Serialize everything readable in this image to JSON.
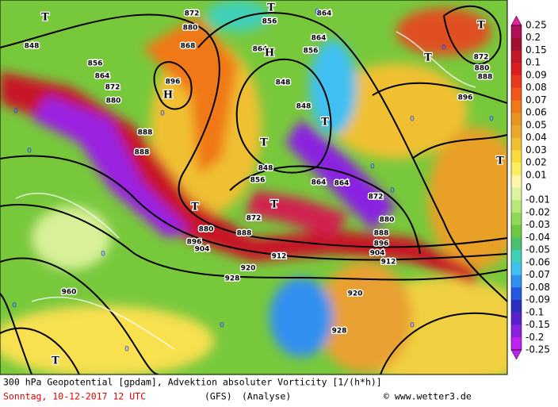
{
  "map": {
    "contour_labels": [
      "872",
      "880",
      "864",
      "872",
      "880",
      "896",
      "888",
      "888",
      "856",
      "868",
      "856",
      "864",
      "864",
      "856",
      "864",
      "848",
      "848",
      "848",
      "856",
      "864",
      "864",
      "872",
      "880",
      "888",
      "896",
      "904",
      "912",
      "912",
      "872",
      "880",
      "888",
      "896",
      "904",
      "920",
      "928",
      "920",
      "928",
      "960",
      "848",
      "872",
      "880",
      "888",
      "896"
    ],
    "center_labels": [
      "H",
      "H",
      "T",
      "T",
      "T",
      "T",
      "T",
      "T",
      "T",
      "T",
      "T",
      "T"
    ],
    "zero_labels": [
      "0",
      "0",
      "0",
      "0",
      "0",
      "0",
      "0",
      "0",
      "0",
      "0",
      "0",
      "0",
      "0",
      "0"
    ],
    "colorbar": {
      "labels": [
        0.25,
        0.2,
        0.15,
        0.1,
        0.09,
        0.08,
        0.07,
        0.06,
        0.05,
        0.04,
        0.03,
        0.02,
        0.01,
        0,
        -0.01,
        -0.02,
        -0.03,
        -0.04,
        -0.05,
        -0.06,
        -0.07,
        -0.08,
        -0.09,
        -0.1,
        -0.15,
        -0.2,
        -0.25
      ],
      "colors": [
        "#b0105a",
        "#a01030",
        "#c01828",
        "#d82020",
        "#e83a1c",
        "#f05818",
        "#f07818",
        "#e89220",
        "#eaa82a",
        "#f0c030",
        "#f8dc3c",
        "#f8ee60",
        "#fff6a8",
        "#dcf4a0",
        "#b8e878",
        "#90d858",
        "#6cc840",
        "#48c070",
        "#40d0b8",
        "#40c0f0",
        "#3090f0",
        "#2458e0",
        "#2c30c0",
        "#5a20d0",
        "#8a20e0",
        "#c020f0"
      ]
    },
    "caption": {
      "title": "300 hPa Geopotential [gpdam], Advektion absoluter Vorticity [1/(h*h)]",
      "date": "Sonntag, 10-12-2017  12 UTC",
      "model": "(GFS)",
      "run": "(Analyse)",
      "source": "© www.wetter3.de"
    }
  }
}
